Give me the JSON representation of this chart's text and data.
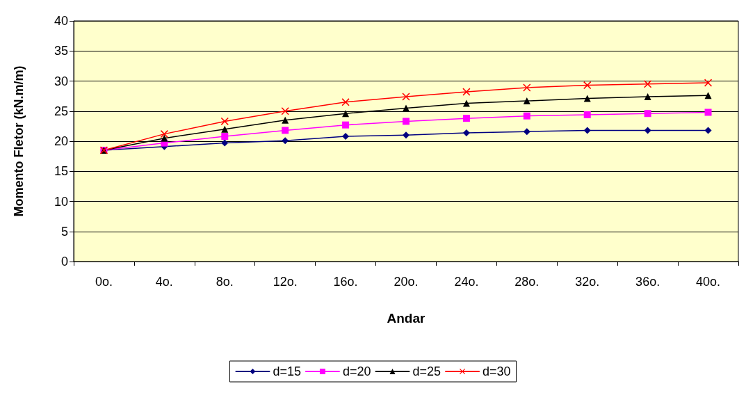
{
  "chart_data": {
    "type": "line",
    "xlabel": "Andar",
    "ylabel": "Momento Fletor (kN.m/m)",
    "categories": [
      "0o.",
      "4o.",
      "8o.",
      "12o.",
      "16o.",
      "20o.",
      "24o.",
      "28o.",
      "32o.",
      "36o.",
      "40o."
    ],
    "series": [
      {
        "name": "d=15",
        "color": "#000080",
        "marker": "diamond",
        "values": [
          18.5,
          19.1,
          19.7,
          20.1,
          20.8,
          21.0,
          21.4,
          21.6,
          21.8,
          21.8,
          21.8
        ]
      },
      {
        "name": "d=20",
        "color": "#ff00ff",
        "marker": "square",
        "values": [
          18.5,
          19.7,
          20.8,
          21.8,
          22.7,
          23.3,
          23.8,
          24.2,
          24.4,
          24.6,
          24.8
        ]
      },
      {
        "name": "d=25",
        "color": "#000000",
        "marker": "triangle",
        "values": [
          18.5,
          20.5,
          22.0,
          23.5,
          24.6,
          25.5,
          26.3,
          26.7,
          27.1,
          27.4,
          27.6
        ]
      },
      {
        "name": "d=30",
        "color": "#ff0000",
        "marker": "cross",
        "values": [
          18.5,
          21.2,
          23.3,
          25.0,
          26.5,
          27.4,
          28.2,
          28.9,
          29.3,
          29.5,
          29.7
        ]
      }
    ],
    "ylim": [
      0,
      40
    ],
    "yticks": [
      0,
      5,
      10,
      15,
      20,
      25,
      30,
      35,
      40
    ],
    "grid": "y",
    "legend": "bottom",
    "line_style": "solid"
  }
}
